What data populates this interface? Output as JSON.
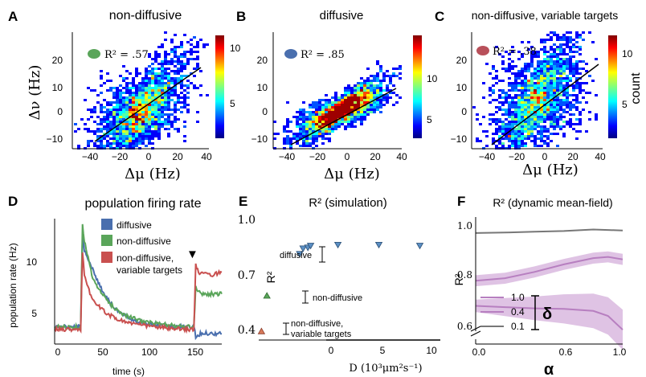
{
  "panels": {
    "A": {
      "letter": "A",
      "title": "non-diffusive",
      "r2": "R² = .57",
      "r2_color": "#5aa55a"
    },
    "B": {
      "letter": "B",
      "title": "diffusive",
      "r2": "R² = .85",
      "r2_color": "#4a6fae"
    },
    "C": {
      "letter": "C",
      "title": "non-diffusive, variable targets",
      "r2": "R² = .38",
      "r2_color": "#b8505a"
    },
    "D": {
      "letter": "D",
      "title": "population firing rate"
    },
    "E": {
      "letter": "E",
      "title": "R² (simulation)"
    },
    "F": {
      "letter": "F",
      "title": "R² (dynamic mean-field)"
    }
  },
  "axes_text": {
    "dmu": "Δμ (Hz)",
    "dnu": "Δν (Hz)",
    "count": "count",
    "pop_rate": "population rate (Hz)",
    "time": "time (s)",
    "r2": "R²",
    "D_label": "D (10³μm²s⁻¹)",
    "alpha": "α",
    "delta": "δ"
  },
  "chart_data": [
    {
      "type": "heatmap",
      "panel": "A",
      "title": "non-diffusive",
      "xlabel": "Δμ (Hz)",
      "ylabel": "Δν (Hz)",
      "xticks": [
        "−40",
        "−20",
        "0",
        "20",
        "40"
      ],
      "yticks": [
        "−10",
        "0",
        "10",
        "20"
      ],
      "xlim": [
        -40,
        40
      ],
      "ylim": [
        -13,
        30
      ],
      "r2": ".57",
      "fit": {
        "slope": 0.5,
        "intercept": 1
      },
      "colorbar_ticks": [
        "5",
        "10"
      ],
      "colorbar_range": [
        0,
        12
      ]
    },
    {
      "type": "heatmap",
      "panel": "B",
      "title": "diffusive",
      "xlabel": "Δμ (Hz)",
      "ylabel": "",
      "xticks": [
        "−40",
        "−20",
        "0",
        "20",
        "40"
      ],
      "yticks": [
        "−10",
        "0",
        "10",
        "20"
      ],
      "xlim": [
        -45,
        40
      ],
      "ylim": [
        -13,
        30
      ],
      "r2": ".85",
      "fit": {
        "slope": 0.3,
        "intercept": 1
      },
      "colorbar_ticks": [
        "5",
        "10"
      ],
      "colorbar_range": [
        0,
        12
      ]
    },
    {
      "type": "heatmap",
      "panel": "C",
      "title": "non-diffusive, variable targets",
      "xlabel": "Δμ (Hz)",
      "ylabel": "",
      "xticks": [
        "−40",
        "−20",
        "0",
        "20",
        "40"
      ],
      "yticks": [
        "−10",
        "0",
        "10",
        "20"
      ],
      "xlim": [
        -40,
        40
      ],
      "ylim": [
        -13,
        30
      ],
      "r2": ".38",
      "fit": {
        "slope": 0.55,
        "intercept": 5
      },
      "colorbar_ticks": [
        "5",
        "10"
      ],
      "colorbar_label": "count",
      "colorbar_range": [
        0,
        12
      ]
    },
    {
      "type": "line",
      "panel": "D",
      "title": "population firing rate",
      "xlabel": "time (s)",
      "ylabel": "population rate (Hz)",
      "xticks": [
        "0",
        "50",
        "100",
        "150"
      ],
      "yticks": [
        "5",
        "10"
      ],
      "xlim": [
        0,
        180
      ],
      "ylim": [
        2.5,
        13.5
      ],
      "series": [
        {
          "name": "diffusive",
          "color": "#4a6fae",
          "x": [
            0,
            28,
            30,
            32,
            35,
            40,
            45,
            50,
            60,
            70,
            80,
            90,
            100,
            110,
            120,
            130,
            140,
            150,
            152,
            155,
            160,
            170,
            180
          ],
          "y": [
            4.0,
            4.0,
            12.0,
            10.8,
            10.2,
            9.2,
            8.3,
            7.4,
            6.1,
            5.2,
            4.8,
            4.5,
            4.3,
            4.2,
            4.1,
            4.0,
            4.0,
            4.0,
            3.2,
            3.3,
            3.5,
            3.4,
            3.4
          ]
        },
        {
          "name": "non-diffusive",
          "color": "#5aa55a",
          "x": [
            0,
            28,
            30,
            32,
            35,
            40,
            45,
            50,
            60,
            70,
            80,
            90,
            100,
            110,
            120,
            130,
            140,
            150,
            152,
            155,
            160,
            170,
            180
          ],
          "y": [
            4.0,
            4.0,
            13.0,
            11.6,
            10.4,
            8.6,
            7.6,
            7.0,
            6.0,
            5.3,
            4.9,
            4.6,
            4.4,
            4.3,
            4.2,
            4.1,
            4.0,
            4.0,
            7.6,
            7.1,
            6.9,
            6.9,
            6.9
          ]
        },
        {
          "name": "non-diffusive, variable targets",
          "color": "#c9504f",
          "x": [
            0,
            28,
            30,
            32,
            35,
            40,
            45,
            50,
            60,
            70,
            80,
            90,
            100,
            110,
            120,
            130,
            140,
            150,
            152,
            155,
            160,
            170,
            180
          ],
          "y": [
            3.8,
            3.8,
            10.6,
            8.5,
            7.6,
            6.6,
            6.0,
            5.6,
            5.0,
            4.6,
            4.4,
            4.2,
            4.1,
            4.0,
            3.9,
            3.8,
            3.8,
            3.8,
            9.4,
            8.8,
            8.6,
            8.6,
            8.8
          ]
        }
      ],
      "annotation": "▼"
    },
    {
      "type": "scatter",
      "panel": "E",
      "title": "R² (simulation)",
      "xlabel": "D (10³μm²s⁻¹)",
      "ylabel": "R²",
      "xticks": [
        "0",
        "5",
        "10"
      ],
      "yticks": [
        "0.4",
        "0.7",
        "1.0"
      ],
      "xlim": [
        -2.8,
        10.5
      ],
      "ylim": [
        0.36,
        1.02
      ],
      "points": [
        {
          "x": 0.2,
          "y": 0.81
        },
        {
          "x": 0.45,
          "y": 0.84
        },
        {
          "x": 0.8,
          "y": 0.845
        },
        {
          "x": 1.0,
          "y": 0.855
        },
        {
          "x": 3.0,
          "y": 0.86
        },
        {
          "x": 6.0,
          "y": 0.86
        },
        {
          "x": 9.0,
          "y": 0.855
        }
      ],
      "groups": [
        {
          "label": "diffusive",
          "x": 0,
          "y": 0.82,
          "err": [
            0.77,
            0.86
          ]
        },
        {
          "label": "non-diffusive",
          "x": -2.2,
          "y": 0.58,
          "err": [
            0.52,
            0.61
          ]
        },
        {
          "label": "non-diffusive,\nvariable targets",
          "x": -2.6,
          "y": 0.385,
          "err": [
            0.36,
            0.42
          ]
        }
      ]
    },
    {
      "type": "line",
      "panel": "F",
      "title": "R² (dynamic mean-field)",
      "xlabel": "α",
      "ylabel": "R²",
      "xticks": [
        "0.0",
        "0.6",
        "1.0"
      ],
      "yticks": [
        "0.6",
        "0.8",
        "1.0"
      ],
      "xlim": [
        0,
        1
      ],
      "ylim": [
        0.56,
        1.04
      ],
      "series": [
        {
          "name": "0.1",
          "color": "#777777",
          "x": [
            0,
            0.2,
            0.4,
            0.6,
            0.8,
            0.9,
            1.0
          ],
          "y": [
            0.97,
            0.972,
            0.975,
            0.978,
            0.984,
            0.982,
            0.98
          ]
        },
        {
          "name": "0.4",
          "color": "#b77fc0",
          "x": [
            0,
            0.2,
            0.4,
            0.6,
            0.8,
            0.9,
            1.0
          ],
          "y": [
            0.78,
            0.79,
            0.815,
            0.845,
            0.87,
            0.875,
            0.865
          ]
        },
        {
          "name": "1.0",
          "color": "#b77fc0",
          "x": [
            0,
            0.2,
            0.4,
            0.6,
            0.8,
            0.9,
            1.0
          ],
          "y": [
            0.68,
            0.675,
            0.67,
            0.668,
            0.66,
            0.64,
            0.585
          ]
        }
      ],
      "legend_title": "δ"
    }
  ]
}
